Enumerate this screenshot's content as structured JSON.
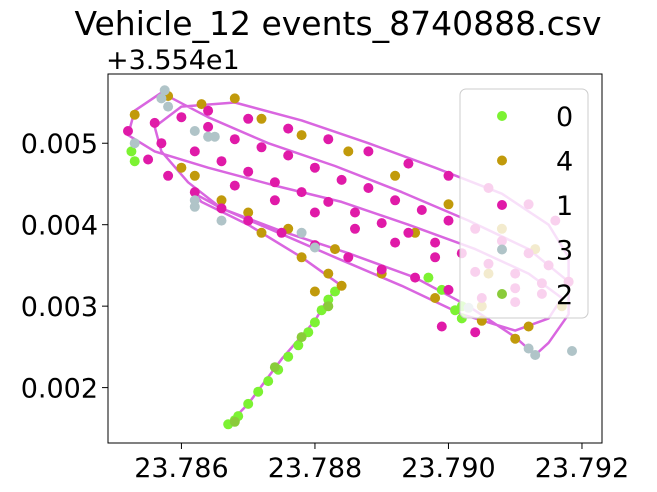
{
  "chart_data": {
    "type": "scatter",
    "title": "Vehicle_12 events_8740888.csv",
    "xlabel": "",
    "ylabel": "",
    "y_offset_label": "+3.554e1",
    "y_offset": 35.54,
    "xlim": [
      23.7849,
      23.7923
    ],
    "ylim": [
      0.00132,
      0.00585
    ],
    "x_ticks": [
      23.786,
      23.788,
      23.79,
      23.792
    ],
    "x_tick_labels": [
      "23.786",
      "23.788",
      "23.790",
      "23.792"
    ],
    "y_ticks": [
      0.002,
      0.003,
      0.004,
      0.005
    ],
    "y_tick_labels": [
      "0.002",
      "0.003",
      "0.004",
      "0.005"
    ],
    "grid": false,
    "legend_position": "top-right",
    "route_color": "#d966e0",
    "series": [
      {
        "name": "0",
        "color": "#7cf232",
        "points": [
          [
            23.7867,
            0.00155
          ],
          [
            23.78685,
            0.00165
          ],
          [
            23.787,
            0.0018
          ],
          [
            23.78715,
            0.00195
          ],
          [
            23.7873,
            0.00208
          ],
          [
            23.78745,
            0.00222
          ],
          [
            23.7876,
            0.00238
          ],
          [
            23.78775,
            0.00252
          ],
          [
            23.7879,
            0.00268
          ],
          [
            23.788,
            0.0028
          ],
          [
            23.7881,
            0.00295
          ],
          [
            23.7882,
            0.00308
          ],
          [
            23.7883,
            0.00318
          ],
          [
            23.7897,
            0.00335
          ],
          [
            23.7899,
            0.0032
          ],
          [
            23.7901,
            0.00295
          ],
          [
            23.7902,
            0.00285
          ],
          [
            23.78525,
            0.0049
          ],
          [
            23.7853,
            0.00478
          ],
          [
            23.7902,
            0.003
          ],
          [
            23.7868,
            0.0016
          ]
        ]
      },
      {
        "name": "4",
        "color": "#c19a0b",
        "points": [
          [
            23.7853,
            0.00535
          ],
          [
            23.7858,
            0.00558
          ],
          [
            23.7863,
            0.00548
          ],
          [
            23.7868,
            0.00555
          ],
          [
            23.7872,
            0.0053
          ],
          [
            23.7878,
            0.0051
          ],
          [
            23.7885,
            0.0049
          ],
          [
            23.7892,
            0.0046
          ],
          [
            23.79,
            0.00425
          ],
          [
            23.7908,
            0.00395
          ],
          [
            23.7913,
            0.0037
          ],
          [
            23.7918,
            0.0033
          ],
          [
            23.7917,
            0.003
          ],
          [
            23.7912,
            0.00275
          ],
          [
            23.7905,
            0.00282
          ],
          [
            23.7898,
            0.0031
          ],
          [
            23.789,
            0.0034
          ],
          [
            23.7883,
            0.0037
          ],
          [
            23.7876,
            0.00395
          ],
          [
            23.787,
            0.00415
          ],
          [
            23.7866,
            0.0043
          ],
          [
            23.7872,
            0.0039
          ],
          [
            23.7878,
            0.0036
          ],
          [
            23.7882,
            0.0034
          ],
          [
            23.7884,
            0.00325
          ],
          [
            23.788,
            0.00318
          ],
          [
            23.7862,
            0.0046
          ],
          [
            23.786,
            0.0047
          ],
          [
            23.7905,
            0.003
          ],
          [
            23.791,
            0.0026
          ],
          [
            23.7906,
            0.0034
          ],
          [
            23.7895,
            0.0039
          ]
        ]
      },
      {
        "name": "1",
        "color": "#e01aa8",
        "points": [
          [
            23.7852,
            0.00515
          ],
          [
            23.7856,
            0.00525
          ],
          [
            23.786,
            0.00532
          ],
          [
            23.7864,
            0.0052
          ],
          [
            23.7868,
            0.00505
          ],
          [
            23.7872,
            0.00495
          ],
          [
            23.7876,
            0.00485
          ],
          [
            23.788,
            0.0047
          ],
          [
            23.7884,
            0.00455
          ],
          [
            23.7888,
            0.00445
          ],
          [
            23.7892,
            0.0043
          ],
          [
            23.7896,
            0.00418
          ],
          [
            23.79,
            0.00405
          ],
          [
            23.7904,
            0.00395
          ],
          [
            23.7908,
            0.0038
          ],
          [
            23.7912,
            0.00365
          ],
          [
            23.7915,
            0.0035
          ],
          [
            23.7918,
            0.0033
          ],
          [
            23.7914,
            0.00315
          ],
          [
            23.791,
            0.00305
          ],
          [
            23.7905,
            0.0031
          ],
          [
            23.79,
            0.0032
          ],
          [
            23.7895,
            0.00335
          ],
          [
            23.789,
            0.00345
          ],
          [
            23.7885,
            0.0036
          ],
          [
            23.788,
            0.00375
          ],
          [
            23.7875,
            0.0039
          ],
          [
            23.787,
            0.00405
          ],
          [
            23.7866,
            0.0042
          ],
          [
            23.7862,
            0.0044
          ],
          [
            23.7858,
            0.0046
          ],
          [
            23.7855,
            0.0048
          ],
          [
            23.7857,
            0.005
          ],
          [
            23.7862,
            0.0049
          ],
          [
            23.7866,
            0.00478
          ],
          [
            23.787,
            0.00465
          ],
          [
            23.7874,
            0.00452
          ],
          [
            23.7878,
            0.0044
          ],
          [
            23.7882,
            0.00428
          ],
          [
            23.7886,
            0.00415
          ],
          [
            23.789,
            0.00402
          ],
          [
            23.7894,
            0.0039
          ],
          [
            23.7898,
            0.00378
          ],
          [
            23.7902,
            0.00365
          ],
          [
            23.7906,
            0.00352
          ],
          [
            23.791,
            0.0034
          ],
          [
            23.7914,
            0.00328
          ],
          [
            23.7864,
            0.0054
          ],
          [
            23.787,
            0.0053
          ],
          [
            23.7876,
            0.00518
          ],
          [
            23.7882,
            0.00505
          ],
          [
            23.7888,
            0.0049
          ],
          [
            23.7894,
            0.00475
          ],
          [
            23.79,
            0.0046
          ],
          [
            23.7906,
            0.00445
          ],
          [
            23.7912,
            0.00425
          ],
          [
            23.7916,
            0.00405
          ],
          [
            23.7868,
            0.00448
          ],
          [
            23.7874,
            0.0043
          ],
          [
            23.788,
            0.00415
          ],
          [
            23.7886,
            0.00395
          ],
          [
            23.7892,
            0.00378
          ],
          [
            23.7898,
            0.0036
          ],
          [
            23.7904,
            0.00342
          ],
          [
            23.791,
            0.00322
          ],
          [
            23.7899,
            0.00275
          ],
          [
            23.7904,
            0.00268
          ]
        ]
      },
      {
        "name": "3",
        "color": "#b0c4c8",
        "points": [
          [
            23.78575,
            0.00565
          ],
          [
            23.7857,
            0.00555
          ],
          [
            23.7858,
            0.00545
          ],
          [
            23.7862,
            0.00515
          ],
          [
            23.7864,
            0.00508
          ],
          [
            23.7862,
            0.0043
          ],
          [
            23.7862,
            0.00422
          ],
          [
            23.7866,
            0.00405
          ],
          [
            23.7878,
            0.0039
          ],
          [
            23.788,
            0.00372
          ],
          [
            23.7903,
            0.00298
          ],
          [
            23.7913,
            0.0024
          ],
          [
            23.79185,
            0.00245
          ],
          [
            23.7912,
            0.00248
          ],
          [
            23.7865,
            0.00508
          ],
          [
            23.7853,
            0.005
          ]
        ]
      },
      {
        "name": "2",
        "color": "#8acb3a",
        "points": [
          [
            23.7868,
            0.00158
          ],
          [
            23.7874,
            0.00225
          ],
          [
            23.7878,
            0.00262
          ],
          [
            23.7882,
            0.003
          ]
        ]
      }
    ],
    "route": [
      [
        23.7867,
        0.00155
      ],
      [
        23.787,
        0.0018
      ],
      [
        23.7875,
        0.00235
      ],
      [
        23.788,
        0.00282
      ],
      [
        23.7882,
        0.0031
      ],
      [
        23.7884,
        0.00325
      ],
      [
        23.7878,
        0.0036
      ],
      [
        23.787,
        0.004
      ],
      [
        23.7863,
        0.00428
      ],
      [
        23.7862,
        0.00438
      ],
      [
        23.7866,
        0.0042
      ],
      [
        23.7875,
        0.00392
      ],
      [
        23.7885,
        0.00365
      ],
      [
        23.7895,
        0.00335
      ],
      [
        23.7903,
        0.003
      ],
      [
        23.791,
        0.00262
      ],
      [
        23.7913,
        0.0024
      ],
      [
        23.7915,
        0.00255
      ],
      [
        23.7918,
        0.0029
      ],
      [
        23.7918,
        0.0033
      ],
      [
        23.7912,
        0.0037
      ],
      [
        23.7903,
        0.00405
      ],
      [
        23.7893,
        0.0044
      ],
      [
        23.7883,
        0.00472
      ],
      [
        23.7873,
        0.005
      ],
      [
        23.7864,
        0.00532
      ],
      [
        23.7857,
        0.00562
      ],
      [
        23.7853,
        0.0054
      ],
      [
        23.7852,
        0.0051
      ],
      [
        23.7856,
        0.0049
      ],
      [
        23.7864,
        0.0047
      ],
      [
        23.7874,
        0.00448
      ],
      [
        23.7884,
        0.00428
      ],
      [
        23.7894,
        0.004
      ],
      [
        23.7904,
        0.0037
      ],
      [
        23.7912,
        0.0034
      ],
      [
        23.7917,
        0.0031
      ],
      [
        23.7915,
        0.00285
      ],
      [
        23.791,
        0.0027
      ],
      [
        23.7902,
        0.0029
      ],
      [
        23.7893,
        0.00325
      ],
      [
        23.7883,
        0.0036
      ],
      [
        23.7874,
        0.00392
      ],
      [
        23.7866,
        0.0042
      ],
      [
        23.7861,
        0.00452
      ],
      [
        23.7857,
        0.0049
      ],
      [
        23.7856,
        0.0052
      ],
      [
        23.786,
        0.00545
      ],
      [
        23.7868,
        0.0055
      ],
      [
        23.7878,
        0.00528
      ],
      [
        23.7888,
        0.005
      ],
      [
        23.7898,
        0.0047
      ],
      [
        23.7908,
        0.00438
      ],
      [
        23.7915,
        0.004
      ],
      [
        23.7918,
        0.0036
      ],
      [
        23.7918,
        0.0033
      ]
    ]
  }
}
